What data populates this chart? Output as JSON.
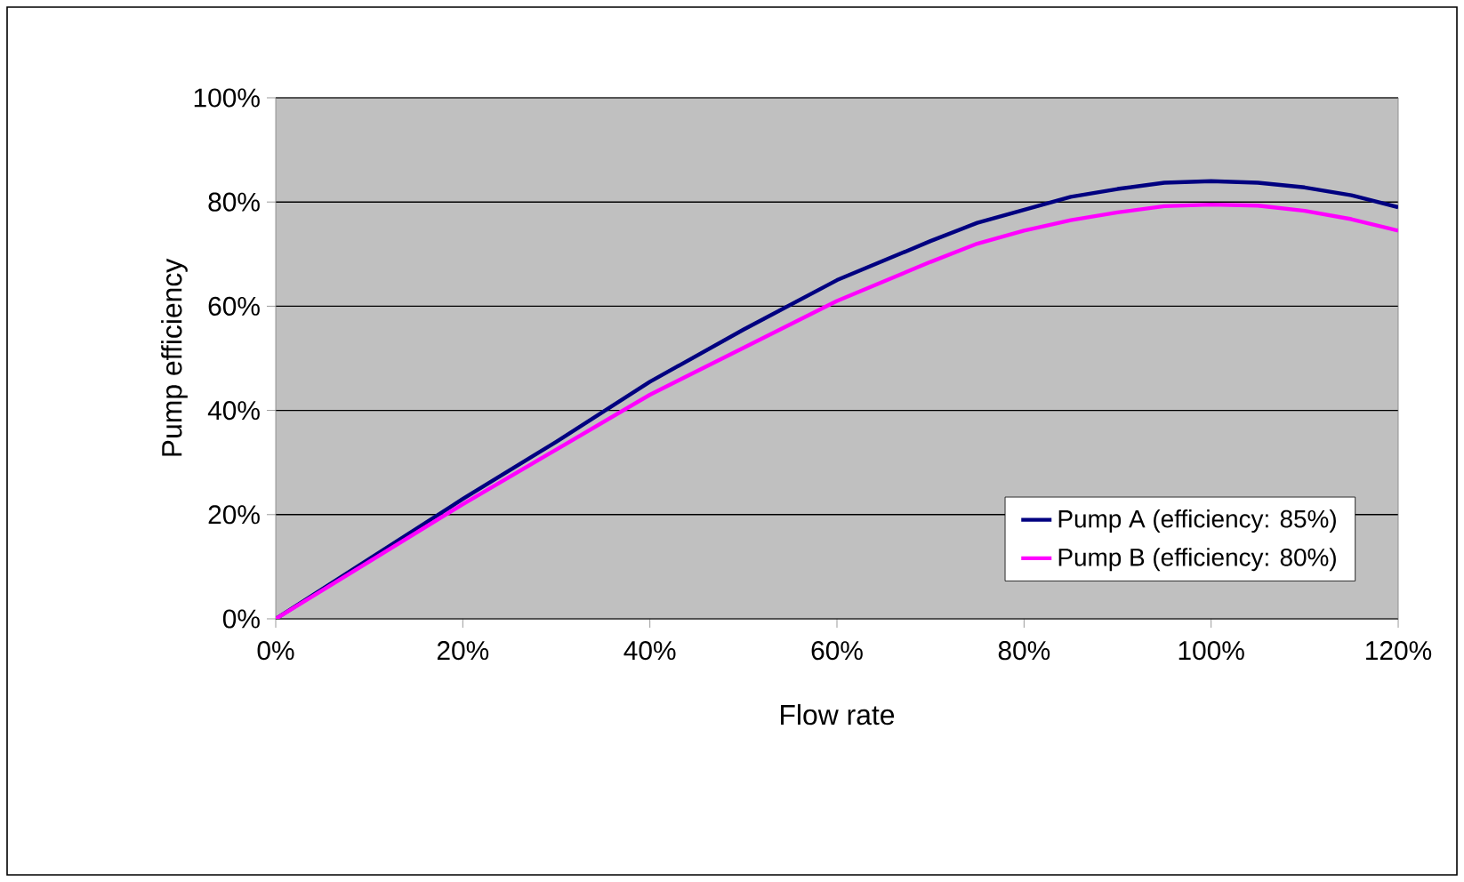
{
  "chart_data": {
    "type": "line",
    "xlabel": "Flow rate",
    "ylabel": "Pump efficiency",
    "series": [
      {
        "name": "Pump A (efficiency: 85%)",
        "color": "#000080",
        "x": [
          0,
          10,
          20,
          30,
          40,
          50,
          60,
          70,
          75,
          80,
          85,
          90,
          95,
          100,
          105,
          110,
          115,
          120
        ],
        "values": [
          0,
          11.5,
          23,
          34,
          45.5,
          55.5,
          65,
          72.5,
          76,
          78.5,
          81,
          82.5,
          83.7,
          84,
          83.7,
          82.8,
          81.3,
          79
        ]
      },
      {
        "name": "Pump B (efficiency: 80%)",
        "color": "#ff00ff",
        "x": [
          0,
          10,
          20,
          30,
          40,
          50,
          60,
          70,
          75,
          80,
          85,
          90,
          95,
          100,
          105,
          110,
          115,
          120
        ],
        "values": [
          0,
          11,
          22,
          32.5,
          43,
          52,
          61,
          68.5,
          72,
          74.5,
          76.5,
          78,
          79.2,
          79.5,
          79.3,
          78.3,
          76.7,
          74.5
        ]
      }
    ],
    "xlim": [
      0,
      120
    ],
    "ylim": [
      0,
      100
    ],
    "xticks": [
      {
        "value": 0,
        "label": "0%"
      },
      {
        "value": 20,
        "label": "20%"
      },
      {
        "value": 40,
        "label": "40%"
      },
      {
        "value": 60,
        "label": "60%"
      },
      {
        "value": 80,
        "label": "80%"
      },
      {
        "value": 100,
        "label": "100%"
      },
      {
        "value": 120,
        "label": "120%"
      }
    ],
    "yticks": [
      {
        "value": 0,
        "label": "0%"
      },
      {
        "value": 20,
        "label": "20%"
      },
      {
        "value": 40,
        "label": "40%"
      },
      {
        "value": 60,
        "label": "60%"
      },
      {
        "value": 80,
        "label": "80%"
      },
      {
        "value": 100,
        "label": "100%"
      }
    ],
    "grid": "y",
    "legend": "bottom right",
    "marker": "none",
    "line_style": "solid"
  }
}
